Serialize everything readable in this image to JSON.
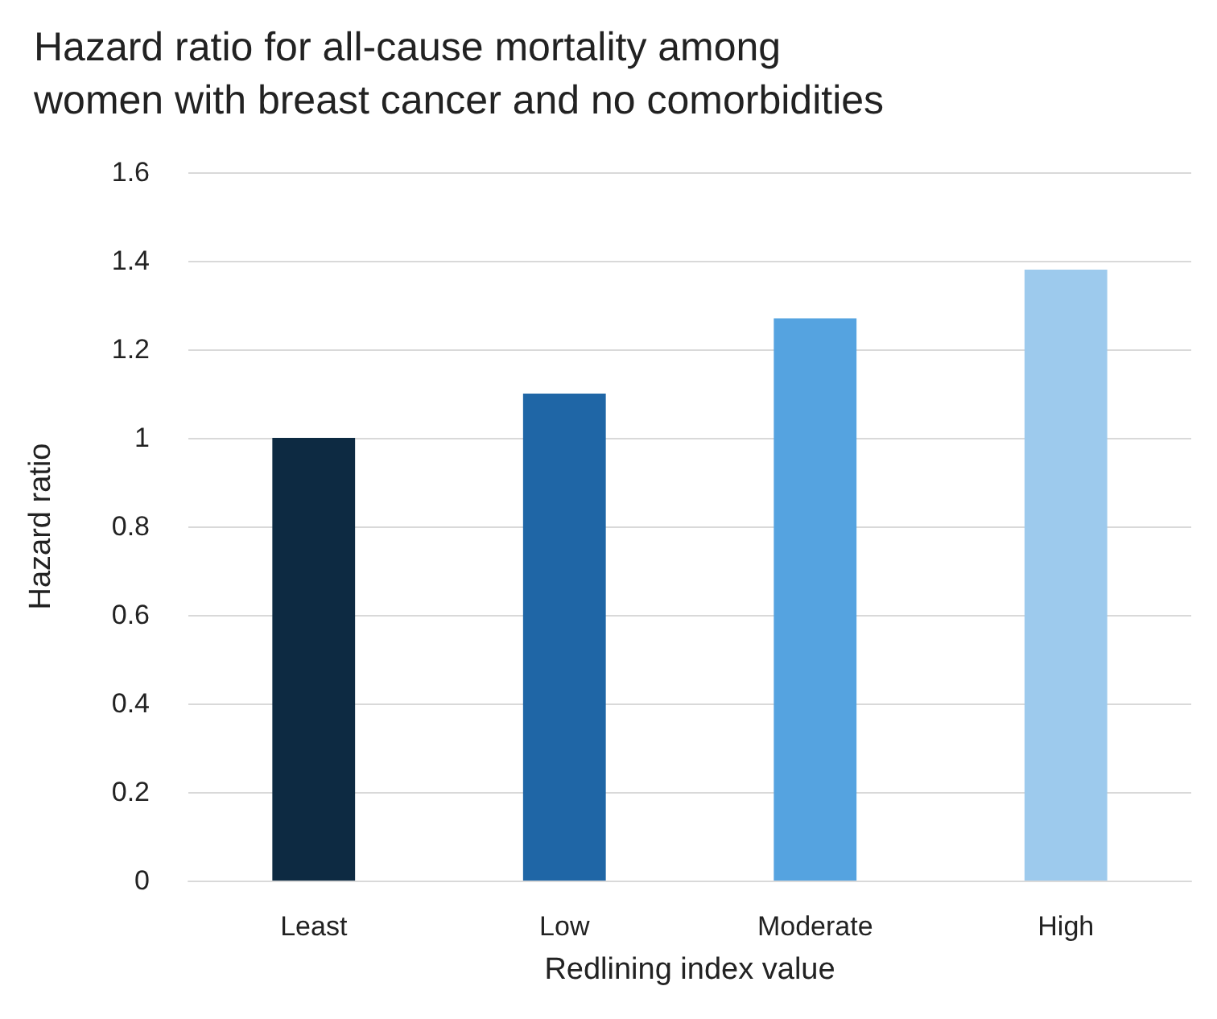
{
  "chart_data": {
    "type": "bar",
    "title": "Hazard ratio for all-cause mortality among women with breast cancer and no comorbidities",
    "xlabel": "Redlining index value",
    "ylabel": "Hazard ratio",
    "categories": [
      "Least",
      "Low",
      "Moderate",
      "High"
    ],
    "values": [
      1.0,
      1.1,
      1.27,
      1.38
    ],
    "colors": [
      "#0d2a42",
      "#1f66a6",
      "#55a3e0",
      "#9dcaed"
    ],
    "ylim": [
      0,
      1.6
    ],
    "yticks": [
      0,
      0.2,
      0.4,
      0.6,
      0.8,
      1,
      1.2,
      1.4,
      1.6
    ],
    "grid": "y"
  }
}
